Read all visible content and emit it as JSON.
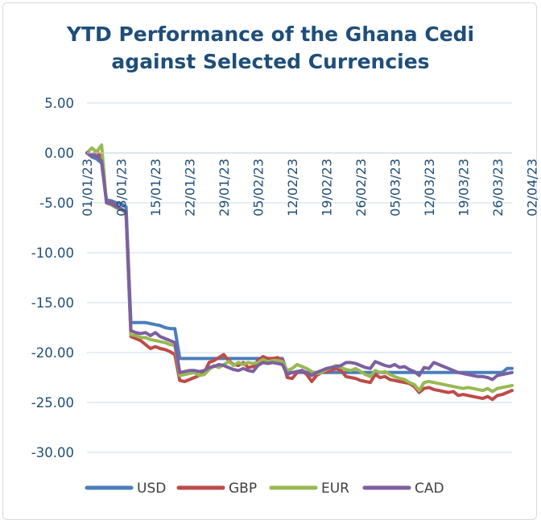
{
  "chart_data": {
    "type": "line",
    "title_line1": "YTD Performance of the Ghana Cedi",
    "title_line2": "against Selected Currencies",
    "xlabel": "",
    "ylabel": "",
    "ylim": [
      -30,
      5
    ],
    "yticks": [
      "5.00",
      "0.00",
      "-5.00",
      "-10.00",
      "-15.00",
      "-20.00",
      "-25.00",
      "-30.00"
    ],
    "ytick_values": [
      5,
      0,
      -5,
      -10,
      -15,
      -20,
      -25,
      -30
    ],
    "xticks": [
      "01/01/23",
      "08/01/23",
      "15/01/23",
      "22/01/23",
      "29/01/23",
      "05/02/23",
      "12/02/23",
      "19/02/23",
      "26/02/23",
      "05/03/23",
      "12/03/23",
      "19/03/23",
      "26/03/23",
      "02/04/23"
    ],
    "grid": true,
    "legend": "bottom",
    "series": [
      {
        "name": "USD",
        "color": "#4a7ebb",
        "points": [
          [
            0,
            0
          ],
          [
            1,
            -0.4
          ],
          [
            2,
            -0.6
          ],
          [
            3,
            -1.0
          ],
          [
            4,
            -4.7
          ],
          [
            5,
            -4.8
          ],
          [
            6,
            -5.0
          ],
          [
            7,
            -5.1
          ],
          [
            8,
            -5.4
          ],
          [
            9,
            -17.0
          ],
          [
            10,
            -17.0
          ],
          [
            11,
            -17.0
          ],
          [
            12,
            -17.0
          ],
          [
            13,
            -17.1
          ],
          [
            14,
            -17.2
          ],
          [
            15,
            -17.3
          ],
          [
            16,
            -17.5
          ],
          [
            17,
            -17.6
          ],
          [
            18,
            -17.6
          ],
          [
            19,
            -20.6
          ],
          [
            20,
            -20.6
          ],
          [
            22,
            -20.6
          ],
          [
            24,
            -20.6
          ],
          [
            26,
            -20.6
          ],
          [
            28,
            -20.6
          ],
          [
            30,
            -20.6
          ],
          [
            32,
            -20.6
          ],
          [
            34,
            -20.6
          ],
          [
            36,
            -20.6
          ],
          [
            38,
            -20.6
          ],
          [
            40,
            -20.6
          ],
          [
            41,
            -22.0
          ],
          [
            43,
            -22.0
          ],
          [
            45,
            -22.0
          ],
          [
            47,
            -22.0
          ],
          [
            49,
            -22.0
          ],
          [
            51,
            -22.0
          ],
          [
            53,
            -22.0
          ],
          [
            55,
            -22.0
          ],
          [
            57,
            -22.0
          ],
          [
            59,
            -22.0
          ],
          [
            61,
            -22.0
          ],
          [
            63,
            -22.0
          ],
          [
            65,
            -22.0
          ],
          [
            67,
            -22.0
          ],
          [
            69,
            -22.0
          ],
          [
            71,
            -22.0
          ],
          [
            73,
            -22.0
          ],
          [
            75,
            -22.0
          ],
          [
            77,
            -22.0
          ],
          [
            79,
            -22.0
          ],
          [
            81,
            -22.0
          ],
          [
            83,
            -22.0
          ],
          [
            85,
            -22.0
          ],
          [
            86,
            -21.6
          ],
          [
            87,
            -21.6
          ]
        ]
      },
      {
        "name": "GBP",
        "color": "#be4b48",
        "points": [
          [
            0,
            0
          ],
          [
            1,
            -0.3
          ],
          [
            2,
            0.2
          ],
          [
            3,
            -0.5
          ],
          [
            4,
            -4.9
          ],
          [
            5,
            -5.0
          ],
          [
            6,
            -5.3
          ],
          [
            7,
            -5.6
          ],
          [
            8,
            -6.0
          ],
          [
            9,
            -18.4
          ],
          [
            10,
            -18.6
          ],
          [
            11,
            -18.8
          ],
          [
            12,
            -19.2
          ],
          [
            13,
            -19.6
          ],
          [
            14,
            -19.4
          ],
          [
            15,
            -19.6
          ],
          [
            16,
            -19.7
          ],
          [
            17,
            -19.9
          ],
          [
            18,
            -20.2
          ],
          [
            19,
            -22.8
          ],
          [
            20,
            -22.9
          ],
          [
            21,
            -22.7
          ],
          [
            22,
            -22.5
          ],
          [
            23,
            -22.3
          ],
          [
            24,
            -22.0
          ],
          [
            25,
            -21.0
          ],
          [
            26,
            -20.8
          ],
          [
            27,
            -20.5
          ],
          [
            28,
            -20.2
          ],
          [
            29,
            -20.8
          ],
          [
            30,
            -21.2
          ],
          [
            31,
            -21.3
          ],
          [
            32,
            -21.0
          ],
          [
            33,
            -21.5
          ],
          [
            34,
            -21.4
          ],
          [
            35,
            -20.8
          ],
          [
            36,
            -20.4
          ],
          [
            37,
            -20.6
          ],
          [
            38,
            -20.6
          ],
          [
            39,
            -20.5
          ],
          [
            40,
            -20.8
          ],
          [
            41,
            -22.5
          ],
          [
            42,
            -22.6
          ],
          [
            43,
            -22.0
          ],
          [
            44,
            -21.8
          ],
          [
            45,
            -22.2
          ],
          [
            46,
            -22.9
          ],
          [
            47,
            -22.3
          ],
          [
            48,
            -22.0
          ],
          [
            49,
            -21.9
          ],
          [
            50,
            -21.8
          ],
          [
            51,
            -21.6
          ],
          [
            52,
            -21.8
          ],
          [
            53,
            -22.4
          ],
          [
            54,
            -22.5
          ],
          [
            55,
            -22.6
          ],
          [
            56,
            -22.8
          ],
          [
            57,
            -22.9
          ],
          [
            58,
            -23.0
          ],
          [
            59,
            -22.2
          ],
          [
            60,
            -22.5
          ],
          [
            61,
            -22.4
          ],
          [
            62,
            -22.7
          ],
          [
            63,
            -22.8
          ],
          [
            64,
            -22.9
          ],
          [
            65,
            -23.0
          ],
          [
            66,
            -23.1
          ],
          [
            67,
            -23.4
          ],
          [
            68,
            -24.0
          ],
          [
            69,
            -23.6
          ],
          [
            70,
            -23.5
          ],
          [
            71,
            -23.7
          ],
          [
            72,
            -23.8
          ],
          [
            73,
            -23.9
          ],
          [
            74,
            -24.0
          ],
          [
            75,
            -23.9
          ],
          [
            76,
            -24.3
          ],
          [
            77,
            -24.2
          ],
          [
            78,
            -24.3
          ],
          [
            79,
            -24.4
          ],
          [
            80,
            -24.5
          ],
          [
            81,
            -24.6
          ],
          [
            82,
            -24.4
          ],
          [
            83,
            -24.7
          ],
          [
            84,
            -24.3
          ],
          [
            85,
            -24.2
          ],
          [
            86,
            -24.0
          ],
          [
            87,
            -23.8
          ]
        ]
      },
      {
        "name": "EUR",
        "color": "#98b954",
        "points": [
          [
            0,
            0
          ],
          [
            1,
            0.5
          ],
          [
            2,
            0.1
          ],
          [
            3,
            0.8
          ],
          [
            4,
            -5.0
          ],
          [
            5,
            -5.2
          ],
          [
            6,
            -5.5
          ],
          [
            7,
            -5.7
          ],
          [
            8,
            -6.0
          ],
          [
            9,
            -18.2
          ],
          [
            10,
            -18.3
          ],
          [
            11,
            -18.5
          ],
          [
            12,
            -18.5
          ],
          [
            13,
            -18.7
          ],
          [
            14,
            -18.8
          ],
          [
            15,
            -18.9
          ],
          [
            16,
            -19.0
          ],
          [
            17,
            -19.2
          ],
          [
            18,
            -19.3
          ],
          [
            19,
            -22.3
          ],
          [
            20,
            -22.2
          ],
          [
            21,
            -22.1
          ],
          [
            22,
            -22.0
          ],
          [
            23,
            -22.3
          ],
          [
            24,
            -22.2
          ],
          [
            25,
            -21.7
          ],
          [
            26,
            -21.3
          ],
          [
            27,
            -21.5
          ],
          [
            28,
            -21.2
          ],
          [
            29,
            -20.9
          ],
          [
            30,
            -21.3
          ],
          [
            31,
            -21.0
          ],
          [
            32,
            -21.2
          ],
          [
            33,
            -21.0
          ],
          [
            34,
            -21.1
          ],
          [
            35,
            -21.0
          ],
          [
            36,
            -20.7
          ],
          [
            37,
            -20.9
          ],
          [
            38,
            -20.8
          ],
          [
            39,
            -20.8
          ],
          [
            40,
            -20.9
          ],
          [
            41,
            -21.8
          ],
          [
            42,
            -21.6
          ],
          [
            43,
            -21.2
          ],
          [
            44,
            -21.4
          ],
          [
            45,
            -21.6
          ],
          [
            46,
            -21.9
          ],
          [
            47,
            -22.1
          ],
          [
            48,
            -22.0
          ],
          [
            49,
            -21.7
          ],
          [
            50,
            -21.5
          ],
          [
            51,
            -21.3
          ],
          [
            52,
            -21.5
          ],
          [
            53,
            -21.7
          ],
          [
            54,
            -21.8
          ],
          [
            55,
            -21.6
          ],
          [
            56,
            -21.9
          ],
          [
            57,
            -22.2
          ],
          [
            58,
            -22.4
          ],
          [
            59,
            -21.8
          ],
          [
            60,
            -22.0
          ],
          [
            61,
            -21.9
          ],
          [
            62,
            -22.2
          ],
          [
            63,
            -22.4
          ],
          [
            64,
            -22.6
          ],
          [
            65,
            -22.7
          ],
          [
            66,
            -23.0
          ],
          [
            67,
            -23.2
          ],
          [
            68,
            -23.8
          ],
          [
            69,
            -23.0
          ],
          [
            70,
            -22.9
          ],
          [
            71,
            -23.0
          ],
          [
            72,
            -23.1
          ],
          [
            73,
            -23.2
          ],
          [
            74,
            -23.3
          ],
          [
            75,
            -23.4
          ],
          [
            76,
            -23.5
          ],
          [
            77,
            -23.6
          ],
          [
            78,
            -23.5
          ],
          [
            79,
            -23.6
          ],
          [
            80,
            -23.7
          ],
          [
            81,
            -23.8
          ],
          [
            82,
            -23.6
          ],
          [
            83,
            -23.9
          ],
          [
            84,
            -23.6
          ],
          [
            85,
            -23.5
          ],
          [
            86,
            -23.4
          ],
          [
            87,
            -23.3
          ]
        ]
      },
      {
        "name": "CAD",
        "color": "#7d5fa0",
        "points": [
          [
            0,
            0
          ],
          [
            1,
            -0.2
          ],
          [
            2,
            -0.3
          ],
          [
            3,
            -0.8
          ],
          [
            4,
            -5.0
          ],
          [
            5,
            -5.1
          ],
          [
            6,
            -5.4
          ],
          [
            7,
            -5.6
          ],
          [
            8,
            -5.9
          ],
          [
            9,
            -17.8
          ],
          [
            10,
            -18.0
          ],
          [
            11,
            -18.1
          ],
          [
            12,
            -18.0
          ],
          [
            13,
            -18.3
          ],
          [
            14,
            -18.0
          ],
          [
            15,
            -18.4
          ],
          [
            16,
            -18.6
          ],
          [
            17,
            -18.8
          ],
          [
            18,
            -19.0
          ],
          [
            19,
            -22.0
          ],
          [
            20,
            -21.9
          ],
          [
            21,
            -21.8
          ],
          [
            22,
            -21.8
          ],
          [
            23,
            -21.9
          ],
          [
            24,
            -21.8
          ],
          [
            25,
            -21.5
          ],
          [
            26,
            -21.4
          ],
          [
            27,
            -21.2
          ],
          [
            28,
            -21.3
          ],
          [
            29,
            -21.5
          ],
          [
            30,
            -21.7
          ],
          [
            31,
            -21.8
          ],
          [
            32,
            -21.6
          ],
          [
            33,
            -21.8
          ],
          [
            34,
            -21.9
          ],
          [
            35,
            -21.3
          ],
          [
            36,
            -21.0
          ],
          [
            37,
            -21.1
          ],
          [
            38,
            -21.0
          ],
          [
            39,
            -21.1
          ],
          [
            40,
            -21.2
          ],
          [
            41,
            -22.2
          ],
          [
            42,
            -22.0
          ],
          [
            43,
            -21.9
          ],
          [
            44,
            -21.8
          ],
          [
            45,
            -22.0
          ],
          [
            46,
            -22.3
          ],
          [
            47,
            -22.0
          ],
          [
            48,
            -21.8
          ],
          [
            49,
            -21.6
          ],
          [
            50,
            -21.5
          ],
          [
            51,
            -21.4
          ],
          [
            52,
            -21.3
          ],
          [
            53,
            -21.0
          ],
          [
            54,
            -21.0
          ],
          [
            55,
            -21.1
          ],
          [
            56,
            -21.3
          ],
          [
            57,
            -21.5
          ],
          [
            58,
            -21.6
          ],
          [
            59,
            -20.9
          ],
          [
            60,
            -21.1
          ],
          [
            61,
            -21.3
          ],
          [
            62,
            -21.4
          ],
          [
            63,
            -21.2
          ],
          [
            64,
            -21.5
          ],
          [
            65,
            -21.4
          ],
          [
            66,
            -21.7
          ],
          [
            67,
            -21.9
          ],
          [
            68,
            -22.3
          ],
          [
            69,
            -21.5
          ],
          [
            70,
            -21.6
          ],
          [
            71,
            -21.0
          ],
          [
            72,
            -21.2
          ],
          [
            73,
            -21.4
          ],
          [
            74,
            -21.6
          ],
          [
            75,
            -21.8
          ],
          [
            76,
            -22.0
          ],
          [
            77,
            -22.1
          ],
          [
            78,
            -22.2
          ],
          [
            79,
            -22.3
          ],
          [
            80,
            -22.4
          ],
          [
            81,
            -22.4
          ],
          [
            82,
            -22.5
          ],
          [
            83,
            -22.7
          ],
          [
            84,
            -22.3
          ],
          [
            85,
            -22.2
          ],
          [
            86,
            -22.1
          ],
          [
            87,
            -22.0
          ]
        ]
      }
    ]
  }
}
